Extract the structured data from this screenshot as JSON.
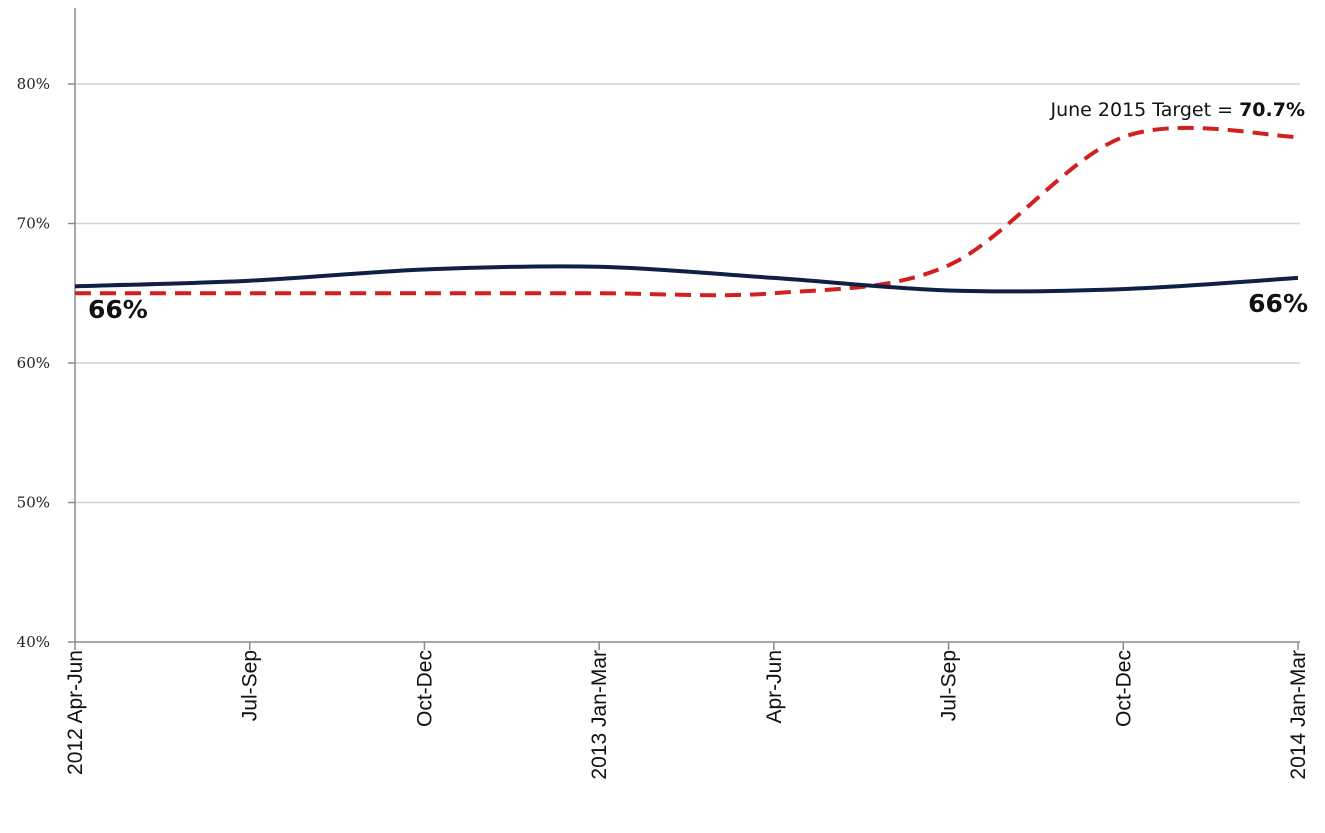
{
  "chart_data": {
    "type": "line",
    "title": "",
    "xlabel": "",
    "ylabel": "",
    "categories": [
      "2012 Apr-Jun",
      "Jul-Sep",
      "Oct-Dec",
      "2013 Jan-Mar",
      "Apr-Jun",
      "Jul-Sep",
      "Oct-Dec",
      "2014 Jan-Mar"
    ],
    "ylim": [
      40,
      80
    ],
    "yticks": [
      "40%",
      "50%",
      "60%",
      "70%",
      "80%"
    ],
    "grid": true,
    "series": [
      {
        "values": [
          65.5,
          65.9,
          66.7,
          66.9,
          66.1,
          65.2,
          65.3,
          66.1
        ],
        "color": "#0f2044",
        "style": "solid"
      },
      {
        "values": [
          65.0,
          65.0,
          65.0,
          65.0,
          65.0,
          67.0,
          76.2,
          76.2
        ],
        "color": "#d21f1f",
        "style": "dashed"
      }
    ],
    "annotations": {
      "start_label": "66%",
      "end_label": "66%",
      "target_prefix": "June 2015 Target = ",
      "target_value": "70.7%"
    }
  }
}
